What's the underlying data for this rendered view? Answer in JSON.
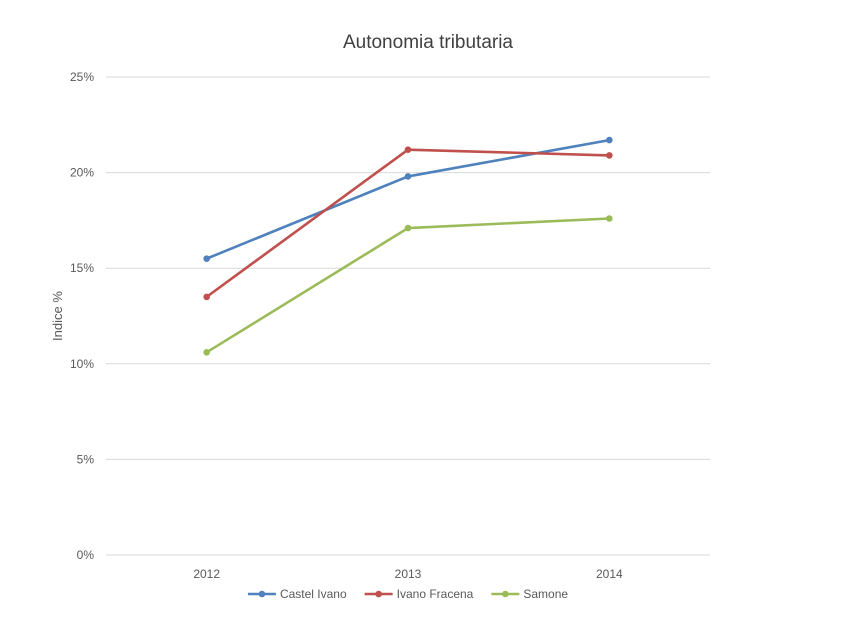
{
  "chart_data": {
    "type": "line",
    "title": "Autonomia tributaria",
    "xlabel": "",
    "ylabel": "Indice %",
    "categories": [
      "2012",
      "2013",
      "2014"
    ],
    "ylim": [
      0,
      25
    ],
    "yticks": [
      0,
      5,
      10,
      15,
      20,
      25
    ],
    "ytick_labels": [
      "0%",
      "5%",
      "10%",
      "15%",
      "20%",
      "25%"
    ],
    "grid": true,
    "legend_position": "bottom",
    "series": [
      {
        "name": "Castel Ivano",
        "color": "#4f81bd",
        "values": [
          15.5,
          19.8,
          21.7
        ]
      },
      {
        "name": "Ivano Fracena",
        "color": "#c0504d",
        "values": [
          13.5,
          21.2,
          20.9
        ]
      },
      {
        "name": "Samone",
        "color": "#9bbb59",
        "values": [
          10.6,
          17.1,
          17.6
        ]
      }
    ]
  }
}
